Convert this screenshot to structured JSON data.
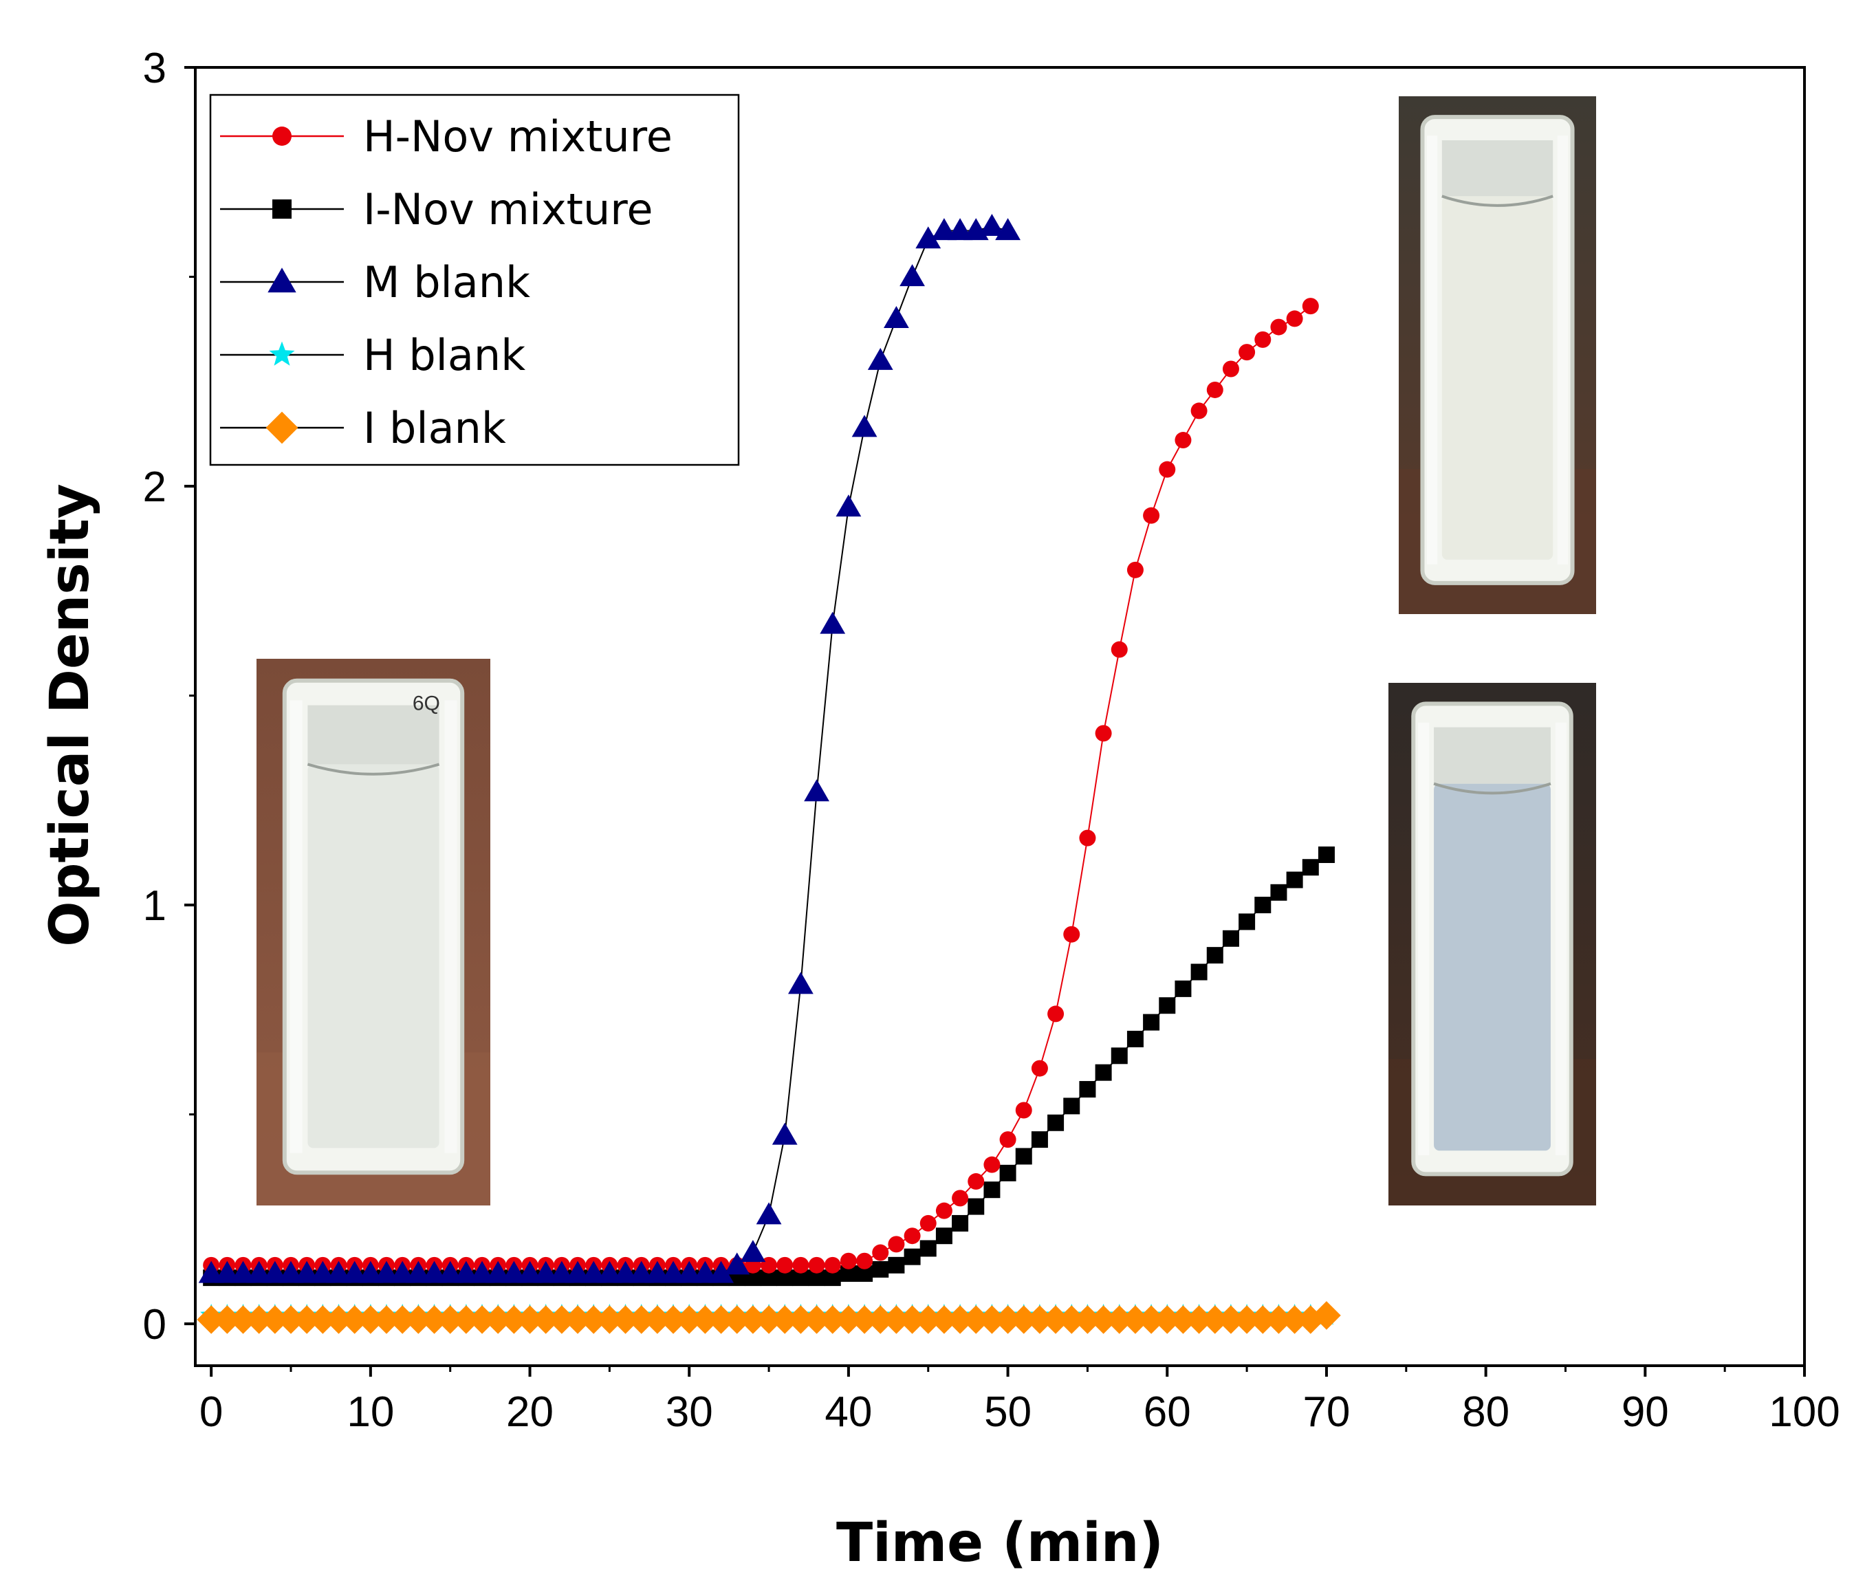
{
  "chart_data": {
    "type": "scatter",
    "title": "",
    "xlabel": "Time (min)",
    "ylabel": "Optical Density",
    "xlim": [
      -1,
      100
    ],
    "ylim": [
      -0.1,
      3
    ],
    "xticks": [
      0,
      10,
      20,
      30,
      40,
      50,
      60,
      70,
      80,
      90,
      100
    ],
    "yticks": [
      0,
      1,
      2,
      3
    ],
    "grid": false,
    "legend_position": "top-left",
    "series": [
      {
        "name": "H-Nov mixture",
        "color": "#e8000b",
        "line_color": "#e8000b",
        "marker": "circle",
        "x": [
          0,
          1,
          2,
          3,
          4,
          5,
          6,
          7,
          8,
          9,
          10,
          11,
          12,
          13,
          14,
          15,
          16,
          17,
          18,
          19,
          20,
          21,
          22,
          23,
          24,
          25,
          26,
          27,
          28,
          29,
          30,
          31,
          32,
          33,
          34,
          35,
          36,
          37,
          38,
          39,
          40,
          41,
          42,
          43,
          44,
          45,
          46,
          47,
          48,
          49,
          50,
          51,
          52,
          53,
          54,
          55,
          56,
          57,
          58,
          59,
          60,
          61,
          62,
          63,
          64,
          65,
          66,
          67,
          68,
          69
        ],
        "y": [
          0.14,
          0.14,
          0.14,
          0.14,
          0.14,
          0.14,
          0.14,
          0.14,
          0.14,
          0.14,
          0.14,
          0.14,
          0.14,
          0.14,
          0.14,
          0.14,
          0.14,
          0.14,
          0.14,
          0.14,
          0.14,
          0.14,
          0.14,
          0.14,
          0.14,
          0.14,
          0.14,
          0.14,
          0.14,
          0.14,
          0.14,
          0.14,
          0.14,
          0.14,
          0.14,
          0.14,
          0.14,
          0.14,
          0.14,
          0.14,
          0.15,
          0.15,
          0.17,
          0.19,
          0.21,
          0.24,
          0.27,
          0.3,
          0.34,
          0.38,
          0.44,
          0.51,
          0.61,
          0.74,
          0.93,
          1.16,
          1.41,
          1.61,
          1.8,
          1.93,
          2.04,
          2.11,
          2.18,
          2.23,
          2.28,
          2.32,
          2.35,
          2.38,
          2.4,
          2.43
        ]
      },
      {
        "name": "I-Nov mixture",
        "color": "#000000",
        "line_color": "#000000",
        "marker": "square",
        "x": [
          0,
          1,
          2,
          3,
          4,
          5,
          6,
          7,
          8,
          9,
          10,
          11,
          12,
          13,
          14,
          15,
          16,
          17,
          18,
          19,
          20,
          21,
          22,
          23,
          24,
          25,
          26,
          27,
          28,
          29,
          30,
          31,
          32,
          33,
          34,
          35,
          36,
          37,
          38,
          39,
          40,
          41,
          42,
          43,
          44,
          45,
          46,
          47,
          48,
          49,
          50,
          51,
          52,
          53,
          54,
          55,
          56,
          57,
          58,
          59,
          60,
          61,
          62,
          63,
          64,
          65,
          66,
          67,
          68,
          69,
          70
        ],
        "y": [
          0.11,
          0.11,
          0.11,
          0.11,
          0.11,
          0.11,
          0.11,
          0.11,
          0.11,
          0.11,
          0.11,
          0.11,
          0.11,
          0.11,
          0.11,
          0.11,
          0.11,
          0.11,
          0.11,
          0.11,
          0.11,
          0.11,
          0.11,
          0.11,
          0.11,
          0.11,
          0.11,
          0.11,
          0.11,
          0.11,
          0.11,
          0.11,
          0.11,
          0.11,
          0.11,
          0.11,
          0.11,
          0.11,
          0.11,
          0.11,
          0.12,
          0.12,
          0.13,
          0.14,
          0.16,
          0.18,
          0.21,
          0.24,
          0.28,
          0.32,
          0.36,
          0.4,
          0.44,
          0.48,
          0.52,
          0.56,
          0.6,
          0.64,
          0.68,
          0.72,
          0.76,
          0.8,
          0.84,
          0.88,
          0.92,
          0.96,
          1.0,
          1.03,
          1.06,
          1.09,
          1.12
        ]
      },
      {
        "name": "M blank",
        "color": "#00008b",
        "line_color": "#000000",
        "marker": "triangle",
        "x": [
          0,
          1,
          2,
          3,
          4,
          5,
          6,
          7,
          8,
          9,
          10,
          11,
          12,
          13,
          14,
          15,
          16,
          17,
          18,
          19,
          20,
          21,
          22,
          23,
          24,
          25,
          26,
          27,
          28,
          29,
          30,
          31,
          32,
          33,
          34,
          35,
          36,
          37,
          38,
          39,
          40,
          41,
          42,
          43,
          44,
          45,
          46,
          47,
          48,
          49,
          50
        ],
        "y": [
          0.12,
          0.12,
          0.12,
          0.12,
          0.12,
          0.12,
          0.12,
          0.12,
          0.12,
          0.12,
          0.12,
          0.12,
          0.12,
          0.12,
          0.12,
          0.12,
          0.12,
          0.12,
          0.12,
          0.12,
          0.12,
          0.12,
          0.12,
          0.12,
          0.12,
          0.12,
          0.12,
          0.12,
          0.12,
          0.12,
          0.12,
          0.12,
          0.12,
          0.14,
          0.17,
          0.26,
          0.45,
          0.81,
          1.27,
          1.67,
          1.95,
          2.14,
          2.3,
          2.4,
          2.5,
          2.59,
          2.61,
          2.61,
          2.61,
          2.62,
          2.61
        ]
      },
      {
        "name": "H blank",
        "color": "#00e5ee",
        "line_color": "#000000",
        "marker": "star",
        "x": [
          0,
          1,
          2,
          3,
          4,
          5,
          6,
          7,
          8,
          9,
          10,
          11,
          12,
          13,
          14,
          15,
          16,
          17,
          18,
          19,
          20,
          21,
          22,
          23,
          24,
          25,
          26,
          27,
          28,
          29,
          30,
          31,
          32,
          33,
          34,
          35,
          36,
          37,
          38,
          39,
          40,
          41,
          42,
          43,
          44,
          45,
          46,
          47,
          48,
          49,
          50,
          51,
          52,
          53,
          54,
          55,
          56,
          57,
          58,
          59,
          60,
          61,
          62,
          63,
          64,
          65,
          66,
          67,
          68,
          69,
          70
        ],
        "y": [
          0.02,
          0.02,
          0.02,
          0.02,
          0.02,
          0.02,
          0.02,
          0.02,
          0.02,
          0.02,
          0.02,
          0.02,
          0.02,
          0.02,
          0.02,
          0.02,
          0.02,
          0.02,
          0.02,
          0.02,
          0.02,
          0.02,
          0.02,
          0.02,
          0.02,
          0.02,
          0.02,
          0.02,
          0.02,
          0.02,
          0.02,
          0.02,
          0.02,
          0.02,
          0.02,
          0.02,
          0.02,
          0.02,
          0.02,
          0.02,
          0.02,
          0.02,
          0.02,
          0.02,
          0.02,
          0.02,
          0.02,
          0.02,
          0.02,
          0.02,
          0.02,
          0.02,
          0.02,
          0.02,
          0.02,
          0.02,
          0.02,
          0.02,
          0.02,
          0.02,
          0.02,
          0.02,
          0.02,
          0.02,
          0.02,
          0.02,
          0.02,
          0.02,
          0.02,
          0.02,
          0.02
        ]
      },
      {
        "name": "I blank",
        "color": "#ff8c00",
        "line_color": "#000000",
        "marker": "diamond",
        "x": [
          0,
          1,
          2,
          3,
          4,
          5,
          6,
          7,
          8,
          9,
          10,
          11,
          12,
          13,
          14,
          15,
          16,
          17,
          18,
          19,
          20,
          21,
          22,
          23,
          24,
          25,
          26,
          27,
          28,
          29,
          30,
          31,
          32,
          33,
          34,
          35,
          36,
          37,
          38,
          39,
          40,
          41,
          42,
          43,
          44,
          45,
          46,
          47,
          48,
          49,
          50,
          51,
          52,
          53,
          54,
          55,
          56,
          57,
          58,
          59,
          60,
          61,
          62,
          63,
          64,
          65,
          66,
          67,
          68,
          69,
          70
        ],
        "y": [
          0.01,
          0.01,
          0.01,
          0.01,
          0.01,
          0.01,
          0.01,
          0.01,
          0.01,
          0.01,
          0.01,
          0.01,
          0.01,
          0.01,
          0.01,
          0.01,
          0.01,
          0.01,
          0.01,
          0.01,
          0.01,
          0.01,
          0.01,
          0.01,
          0.01,
          0.01,
          0.01,
          0.01,
          0.01,
          0.01,
          0.01,
          0.01,
          0.01,
          0.01,
          0.01,
          0.01,
          0.01,
          0.01,
          0.01,
          0.01,
          0.01,
          0.01,
          0.01,
          0.01,
          0.01,
          0.01,
          0.01,
          0.01,
          0.01,
          0.01,
          0.01,
          0.01,
          0.01,
          0.01,
          0.01,
          0.01,
          0.01,
          0.01,
          0.01,
          0.01,
          0.01,
          0.01,
          0.01,
          0.01,
          0.01,
          0.01,
          0.01,
          0.01,
          0.01,
          0.01,
          0.02
        ]
      }
    ],
    "annotations": [
      {
        "kind": "cuvette-photo",
        "label": "6Q",
        "tint": "#e4e8e2",
        "shade": "clear",
        "bg_top": "#7a4b38",
        "bg_bottom": "#8f5a43"
      },
      {
        "kind": "cuvette-photo",
        "label": "",
        "tint": "#e9ebe2",
        "shade": "milky white",
        "bg_top": "#3e3a33",
        "bg_bottom": "#5b3a2a"
      },
      {
        "kind": "cuvette-photo",
        "label": "",
        "tint": "#b9c7d3",
        "shade": "milky blue",
        "bg_top": "#2f2a27",
        "bg_bottom": "#4a2f22"
      }
    ]
  }
}
